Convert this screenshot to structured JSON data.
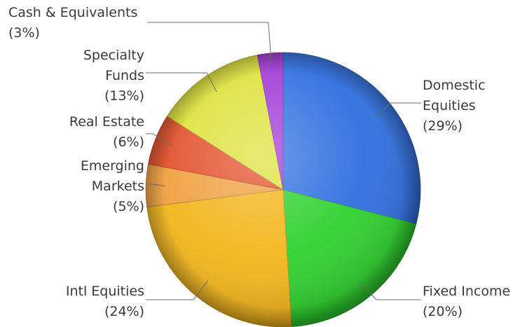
{
  "chart_data": {
    "type": "pie",
    "title": "",
    "slices": [
      {
        "label": "Domestic Equities",
        "pct_label": "(29%)",
        "value": 29,
        "color": "#2f6fe0"
      },
      {
        "label": "Fixed Income",
        "pct_label": "(20%)",
        "value": 20,
        "color": "#2fd12f"
      },
      {
        "label": "Intl Equities",
        "pct_label": "(24%)",
        "value": 24,
        "color": "#f3b51a"
      },
      {
        "label": "Emerging Markets",
        "pct_label": "(5%)",
        "value": 5,
        "color": "#f0a040"
      },
      {
        "label": "Real Estate",
        "pct_label": "(6%)",
        "value": 6,
        "color": "#e2502a"
      },
      {
        "label": "Specialty Funds",
        "pct_label": "(13%)",
        "value": 13,
        "color": "#dde23a"
      },
      {
        "label": "Cash & Equivalents",
        "pct_label": "(3%)",
        "value": 3,
        "color": "#a13ad6"
      }
    ],
    "label_lines": {
      "Domestic Equities": [
        "Domestic",
        "Equities",
        "(29%)"
      ],
      "Fixed Income": [
        "Fixed Income",
        "(20%)"
      ],
      "Intl Equities": [
        "Intl Equities",
        "(24%)"
      ],
      "Emerging Markets": [
        "Emerging",
        "Markets",
        "(5%)"
      ],
      "Real Estate": [
        "Real Estate",
        "(6%)"
      ],
      "Specialty Funds": [
        "Specialty",
        "Funds",
        "(13%)"
      ],
      "Cash & Equivalents": [
        "Cash & Equivalents",
        "(3%)"
      ]
    },
    "start": "12 o'clock",
    "direction": "clockwise",
    "legend": "none"
  }
}
